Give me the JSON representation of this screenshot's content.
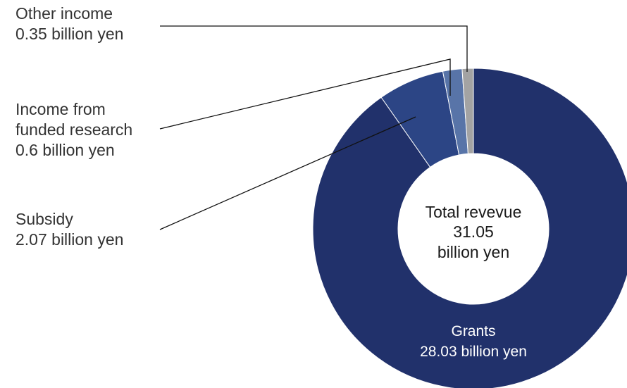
{
  "chart_data": {
    "type": "pie",
    "style": "donut",
    "center_label": [
      "Total revevue",
      "31.05",
      "billion yen"
    ],
    "slices": [
      {
        "name": "Grants",
        "value_text": "28.03 billion yen",
        "value": 28.03,
        "color": "#21316b"
      },
      {
        "name": "Subsidy",
        "value_text": "2.07 billion yen",
        "value": 2.07,
        "color": "#2c4585"
      },
      {
        "name": "Income from funded research",
        "name_lines": [
          "Income from",
          "funded research"
        ],
        "value_text": "0.6 billion yen",
        "value": 0.6,
        "color": "#5874a8"
      },
      {
        "name": "Other income",
        "value_text": "0.35 billion yen",
        "value": 0.35,
        "color": "#a3a3a3"
      }
    ],
    "total": 31.05,
    "unit": "billion yen"
  }
}
